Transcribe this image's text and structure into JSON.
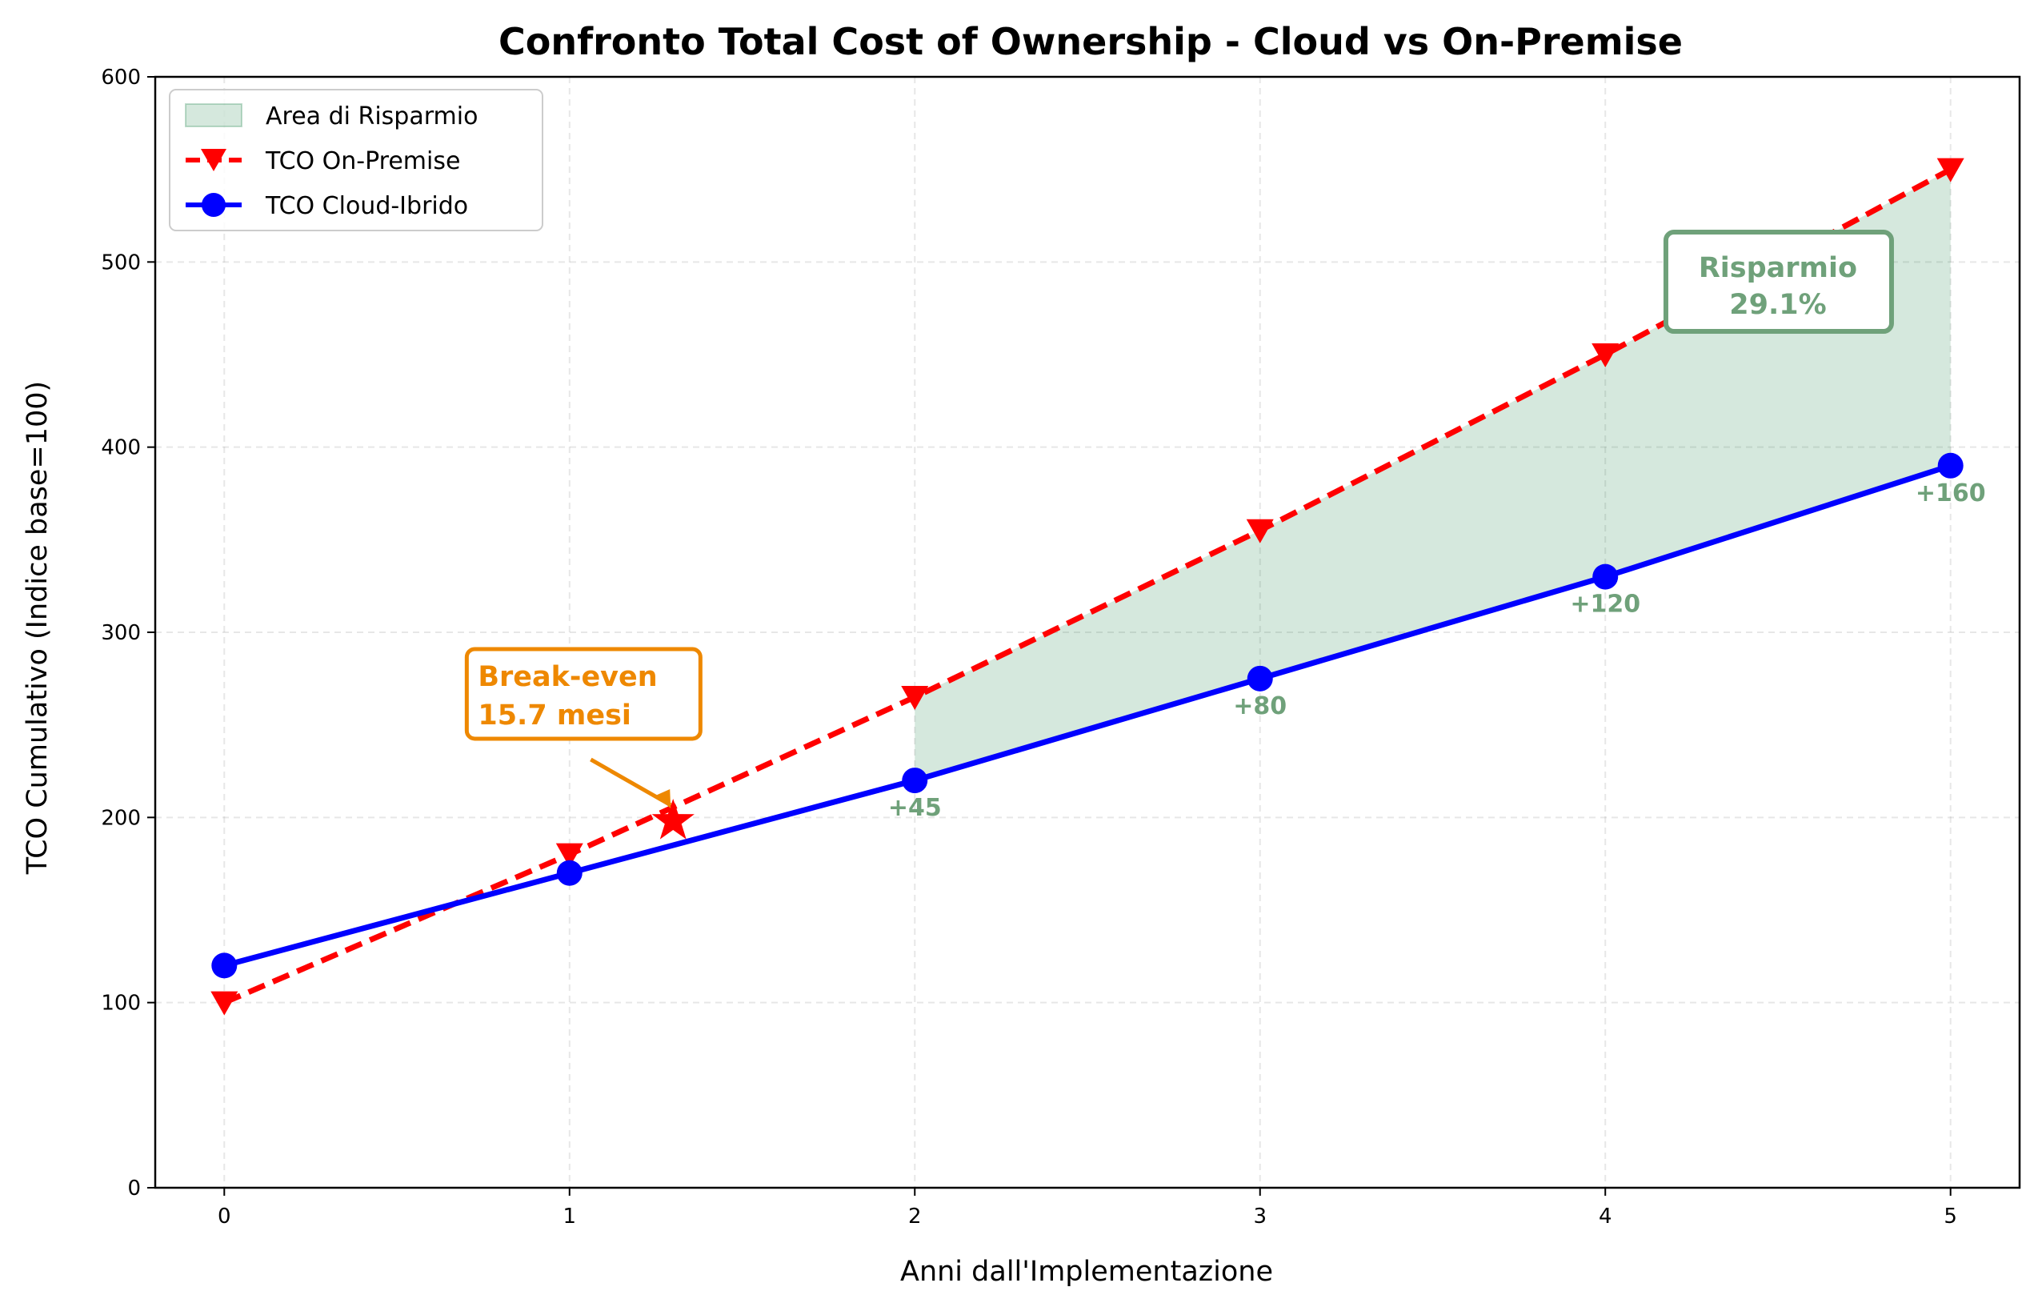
{
  "chart_data": {
    "type": "line",
    "title": "Confronto Total Cost of Ownership - Cloud vs On-Premise",
    "xlabel": "Anni dall'Implementazione",
    "ylabel": "TCO Cumulativo (Indice base=100)",
    "x": [
      0,
      1,
      2,
      3,
      4,
      5
    ],
    "xlim": [
      -0.2,
      5.2
    ],
    "ylim": [
      0,
      600
    ],
    "xticks": [
      "0",
      "1",
      "2",
      "3",
      "4",
      "5"
    ],
    "yticks": [
      "0",
      "100",
      "200",
      "300",
      "400",
      "500",
      "600"
    ],
    "grid": true,
    "legend_position": "top-left",
    "legend": {
      "fill": "Area di Risparmio",
      "onprem": "TCO On-Premise",
      "cloud": "TCO Cloud-Ibrido"
    },
    "series": [
      {
        "name": "TCO On-Premise",
        "values": [
          100,
          180,
          265,
          355,
          450,
          550
        ],
        "color": "#ff0000",
        "style": "dashed",
        "marker": "triangle-down"
      },
      {
        "name": "TCO Cloud-Ibrido",
        "values": [
          120,
          170,
          220,
          275,
          330,
          390
        ],
        "color": "#0000ff",
        "style": "solid",
        "marker": "circle"
      }
    ],
    "savings_area": {
      "name": "Area di Risparmio",
      "x_from": 2,
      "x_to": 5,
      "color": "#2e8b57"
    },
    "savings_labels": [
      {
        "x": 2,
        "text": "+45"
      },
      {
        "x": 3,
        "text": "+80"
      },
      {
        "x": 4,
        "text": "+120"
      },
      {
        "x": 5,
        "text": "+160"
      }
    ],
    "break_even": {
      "x": 1.3,
      "y": 198,
      "line1": "Break-even",
      "line2": "15.7 mesi",
      "color": "#ee8800",
      "box_x": 1.05,
      "box_y": 265
    },
    "savings_box": {
      "line1": "Risparmio",
      "line2": "29.1%",
      "color": "#6fa17a",
      "box_x": 4.5,
      "box_y": 485
    }
  }
}
